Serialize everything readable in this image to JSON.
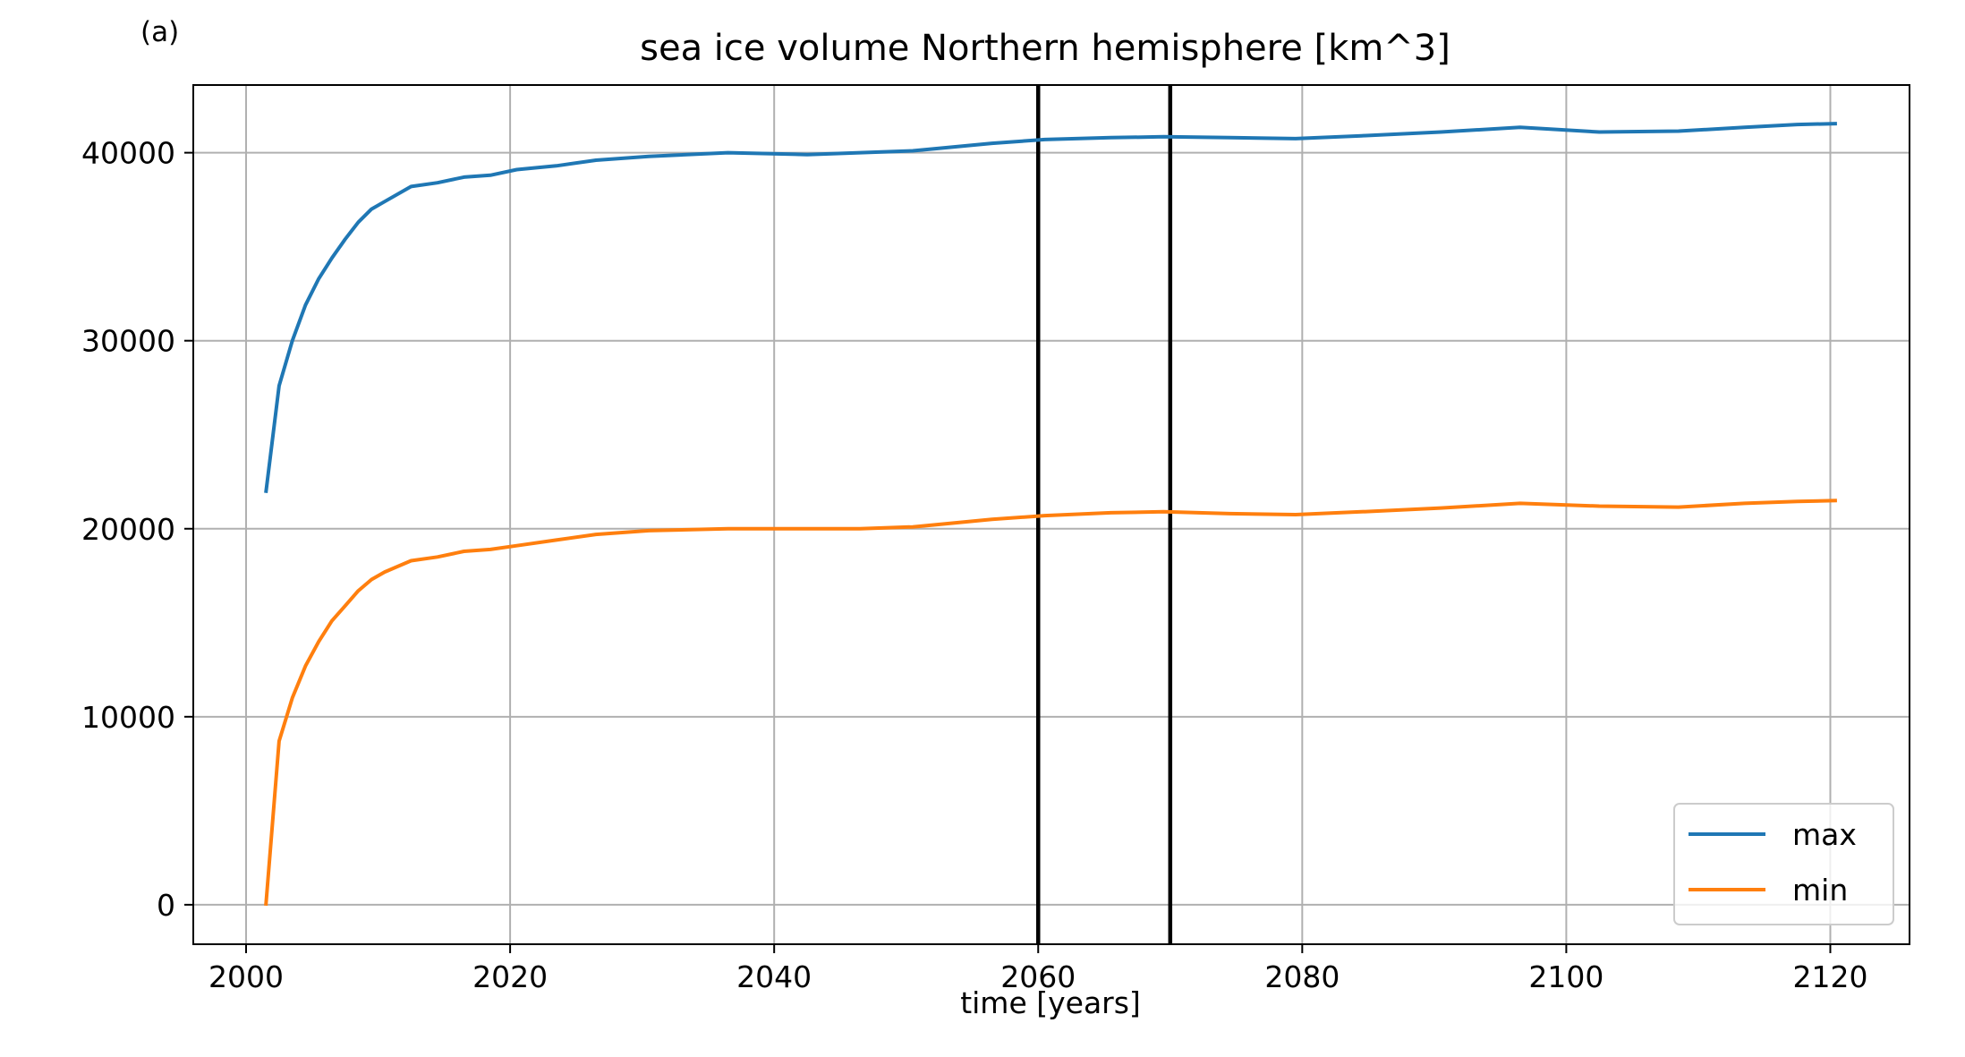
{
  "chart_data": {
    "type": "line",
    "panel_label": "(a)",
    "title": "sea ice volume Northern hemisphere [km^3]",
    "xlabel": "time [years]",
    "ylabel": "",
    "xlim": [
      1996,
      2126
    ],
    "ylim": [
      -2100,
      43600
    ],
    "xticks": [
      2000,
      2020,
      2040,
      2060,
      2080,
      2100,
      2120
    ],
    "yticks": [
      0,
      10000,
      20000,
      30000,
      40000
    ],
    "grid": true,
    "legend_position": "lower-right",
    "vlines": [
      2060,
      2070
    ],
    "series": [
      {
        "name": "max",
        "color": "#1f77b4",
        "x": [
          2001.5,
          2002.5,
          2003.5,
          2004.5,
          2005.5,
          2006.5,
          2007.5,
          2008.5,
          2009.5,
          2010.5,
          2012.5,
          2014.5,
          2016.5,
          2018.5,
          2020.5,
          2023.5,
          2026.5,
          2030.5,
          2036.5,
          2042.5,
          2046.5,
          2050.5,
          2056.5,
          2060.5,
          2065.5,
          2069.5,
          2074.5,
          2079.5,
          2084.5,
          2090.5,
          2096.5,
          2102.5,
          2108.5,
          2113.5,
          2117.5,
          2120.5
        ],
        "values": [
          21900,
          27600,
          30000,
          31900,
          33300,
          34400,
          35400,
          36300,
          37000,
          37400,
          38200,
          38400,
          38700,
          38800,
          39100,
          39300,
          39600,
          39800,
          40000,
          39900,
          40000,
          40100,
          40500,
          40700,
          40800,
          40850,
          40800,
          40750,
          40900,
          41100,
          41350,
          41100,
          41150,
          41350,
          41500,
          41550
        ]
      },
      {
        "name": "min",
        "color": "#ff7f0e",
        "x": [
          2001.5,
          2002.5,
          2003.5,
          2004.5,
          2005.5,
          2006.5,
          2007.5,
          2008.5,
          2009.5,
          2010.5,
          2012.5,
          2014.5,
          2016.5,
          2018.5,
          2020.5,
          2023.5,
          2026.5,
          2030.5,
          2036.5,
          2042.5,
          2046.5,
          2050.5,
          2056.5,
          2060.5,
          2065.5,
          2069.5,
          2074.5,
          2079.5,
          2084.5,
          2090.5,
          2096.5,
          2102.5,
          2108.5,
          2113.5,
          2117.5,
          2120.5
        ],
        "values": [
          -50,
          8700,
          11000,
          12700,
          14000,
          15100,
          15900,
          16700,
          17300,
          17700,
          18300,
          18500,
          18800,
          18900,
          19100,
          19400,
          19700,
          19900,
          20000,
          20000,
          20000,
          20100,
          20500,
          20700,
          20850,
          20900,
          20800,
          20750,
          20900,
          21100,
          21350,
          21200,
          21150,
          21350,
          21450,
          21500
        ]
      }
    ]
  }
}
